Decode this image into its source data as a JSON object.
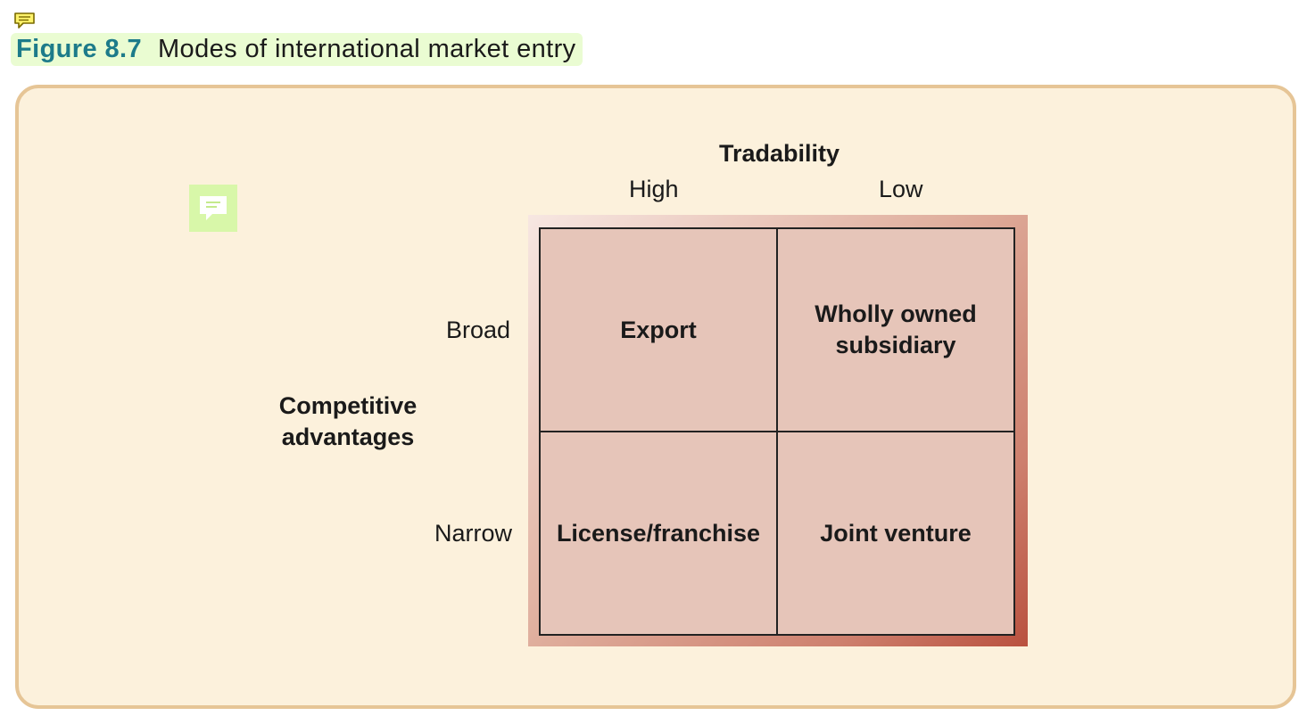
{
  "caption": {
    "number": "Figure 8.7",
    "title": "Modes of international market entry"
  },
  "icons": {
    "top": "comment-icon",
    "note": "note-icon"
  },
  "diagram": {
    "column_axis": {
      "title": "Tradability",
      "levels": [
        "High",
        "Low"
      ]
    },
    "row_axis": {
      "title_line1": "Competitive",
      "title_line2": "advantages",
      "levels": [
        "Broad",
        "Narrow"
      ]
    },
    "cells": {
      "broad_high": "Export",
      "broad_low_line1": "Wholly owned",
      "broad_low_line2": "subsidiary",
      "narrow_high": "License/franchise",
      "narrow_low": "Joint venture"
    }
  },
  "colors": {
    "caption_number": "#1d7b8a",
    "caption_bg": "#eafcd2",
    "panel_bg": "#fcf1dc",
    "panel_border": "#e6c596",
    "cell_fill": "#e6c5b9",
    "note_icon_bg": "#d8f7a9"
  }
}
